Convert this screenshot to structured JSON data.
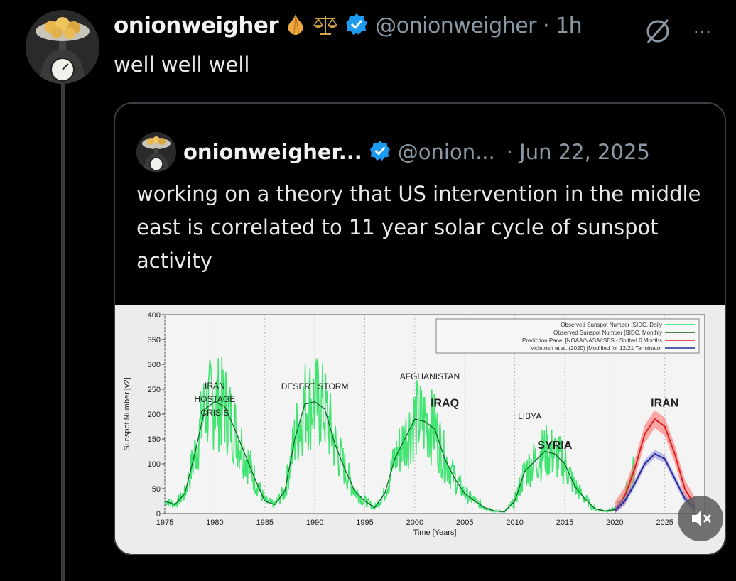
{
  "post": {
    "display_name": "onionweigher",
    "handle_time": "@onionweigher · 1h",
    "text": "well well well",
    "more_label": "···"
  },
  "quote": {
    "display_name": "onionweigher...",
    "handle": "@onion...",
    "date": "· Jun 22, 2025",
    "text": "working on a theory that US intervention in the middle east is correlated to 11 year solar cycle of sunspot activity"
  },
  "colors": {
    "verified": "#1d9bf0",
    "observed_daily": "#22e05a",
    "observed_monthly": "#0b5e22",
    "prediction_panel": "#d42020",
    "mcintosh": "#2a2a9a"
  },
  "chart_data": {
    "type": "line",
    "title": "",
    "xlabel": "Time [Years]",
    "ylabel": "Sunspot Number [v2]",
    "xlim": [
      1975,
      2029
    ],
    "ylim": [
      0,
      400
    ],
    "xticks": [
      1975,
      1980,
      1985,
      1990,
      1995,
      2000,
      2005,
      2010,
      2015,
      2020,
      2025
    ],
    "yticks": [
      0,
      50,
      100,
      150,
      200,
      250,
      300,
      350,
      400
    ],
    "legend": {
      "placement": "top-right",
      "entries": [
        "Observed Sunspot Number [SIDC, Daily",
        "Observed Sunspot Number [SIDC, Monthly",
        "Prediction Panel [NOAA/NASA/ISES - Shifted 6 Months",
        "McIntosh et al. (2020) [Modified for 12/21 Terminator"
      ]
    },
    "series": [
      {
        "name": "Observed Sunspot Number [SIDC, Monthly",
        "x": [
          1975,
          1976,
          1977,
          1978,
          1979,
          1980,
          1981,
          1982,
          1983,
          1984,
          1985,
          1986,
          1987,
          1988,
          1989,
          1990,
          1991,
          1992,
          1993,
          1994,
          1995,
          1996,
          1997,
          1998,
          1999,
          2000,
          2001,
          2002,
          2003,
          2004,
          2005,
          2006,
          2007,
          2008,
          2009,
          2010,
          2011,
          2012,
          2013,
          2014,
          2015,
          2016,
          2017,
          2018,
          2019,
          2020,
          2021,
          2022
        ],
        "y": [
          25,
          18,
          40,
          120,
          210,
          225,
          215,
          170,
          120,
          70,
          25,
          18,
          45,
          150,
          220,
          225,
          210,
          140,
          90,
          45,
          25,
          12,
          40,
          110,
          150,
          190,
          185,
          170,
          110,
          70,
          40,
          25,
          12,
          5,
          4,
          25,
          85,
          105,
          125,
          120,
          100,
          55,
          30,
          10,
          5,
          8,
          35,
          90
        ]
      },
      {
        "name": "Prediction Panel [NOAA/NASA/ISES - Shifted 6 Months",
        "x": [
          2020,
          2021,
          2022,
          2023,
          2024,
          2025,
          2026,
          2027,
          2028
        ],
        "y": [
          5,
          35,
          90,
          160,
          190,
          175,
          120,
          50,
          15
        ]
      },
      {
        "name": "McIntosh et al. (2020) [Modified for 12/21 Terminator",
        "x": [
          2020,
          2021,
          2022,
          2023,
          2024,
          2025,
          2026,
          2027,
          2028
        ],
        "y": [
          5,
          25,
          60,
          100,
          120,
          110,
          70,
          30,
          10
        ]
      }
    ],
    "annotations": [
      {
        "text": "IRAN HOSTAGE CRISIS",
        "x": 1980,
        "y": 240
      },
      {
        "text": "DESERT STORM",
        "x": 1990,
        "y": 250
      },
      {
        "text": "AFGHANISTAN",
        "x": 2001.5,
        "y": 270
      },
      {
        "text": "IRAQ",
        "x": 2003,
        "y": 215
      },
      {
        "text": "LIBYA",
        "x": 2011.5,
        "y": 190
      },
      {
        "text": "SYRIA",
        "x": 2014,
        "y": 130
      },
      {
        "text": "IRAN",
        "x": 2025,
        "y": 215
      }
    ]
  }
}
